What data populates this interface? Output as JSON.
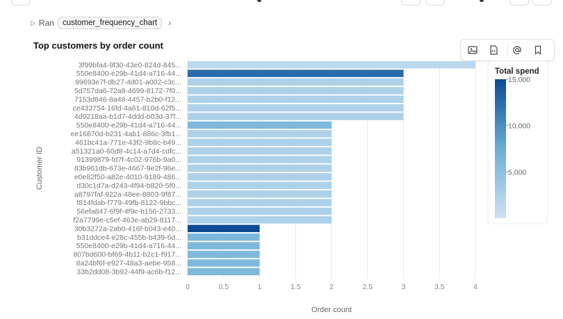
{
  "breadcrumb": {
    "ran_label": "Ran",
    "chip_label": "customer_frequency_chart"
  },
  "toolbar": {
    "icons": [
      "image-icon",
      "code-icon",
      "mention-icon",
      "bookmark-icon"
    ]
  },
  "chart_data": {
    "type": "bar",
    "orientation": "horizontal",
    "title": "Top customers by order count",
    "xlabel": "Order count",
    "ylabel": "Customer ID",
    "xlim": [
      0,
      4
    ],
    "xticks": [
      "0",
      "0.5",
      "1",
      "1.5",
      "2",
      "2.5",
      "3",
      "3.5",
      "4"
    ],
    "grid": true,
    "categories": [
      "3f99bfa4-9f30-43e0-824d-845...",
      "550e8400-e29b-41d4-a716-44...",
      "99693e7f-db27-4d01-a002-c3c...",
      "5d757da6-72a8-4699-8172-7f0...",
      "7153d846-8a48-4457-b2b0-f12...",
      "ce433754-16fd-4a61-810d-62f5...",
      "4d9218aa-b1d7-4ddd-b03d-37f...",
      "550e8400-e29b-41d4-a716-44...",
      "ee16870d-b231-4ab1-886c-3fb1...",
      "461bc41a-771e-43f2-9b8c-b49...",
      "a51321a0-60d8-4c14-a7d4-cdfc...",
      "91399879-fd7f-4c02-976b-9a0...",
      "83b961db-673e-4667-9e2f-96e...",
      "e0e82f50-a82e-4010-9189-486...",
      "d30c1d7a-d243-4f94-b820-5f0...",
      "a8797faf-922a-48ee-8803-9f87...",
      "f814fdab-f779-49fb-8122-9bbc...",
      "56efa847-6f9f-4f9c-b156-2733...",
      "f2a7799e-c5ef-463e-ab29-8117...",
      "30b3272a-2ab0-416f-b043-e40...",
      "b31ddce4-e28c-455b-b439-6d...",
      "550e8400-e29b-41d4-a716-44...",
      "807bd600-bf69-4b11-b2c1-f917...",
      "8a24bf6f-e927-48a3-aebe-958...",
      "33b2dd08-3b92-44f9-ac6b-f12..."
    ],
    "values": [
      4,
      3,
      3,
      3,
      3,
      3,
      3,
      2,
      2,
      2,
      2,
      2,
      2,
      2,
      2,
      2,
      2,
      2,
      2,
      1,
      1,
      1,
      1,
      1,
      1
    ],
    "color_values": [
      1500,
      12500,
      2500,
      2500,
      2500,
      2500,
      2500,
      6000,
      2500,
      2500,
      2500,
      2500,
      2500,
      2500,
      2500,
      2500,
      2500,
      2500,
      2500,
      15000,
      6000,
      6000,
      6000,
      6000,
      6000
    ],
    "color_scale": {
      "title": "Total spend",
      "min": 0,
      "max": 15000,
      "ticks": [
        "5,000",
        "10,000",
        "15,000"
      ],
      "low_color": "#cfe2f3",
      "high_color": "#0b4a92"
    },
    "legend_position": "right"
  }
}
